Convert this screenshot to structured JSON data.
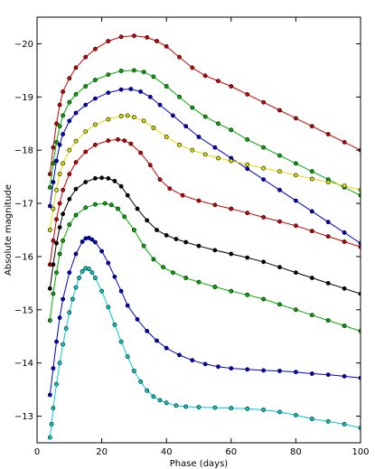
{
  "chart_data": {
    "type": "line",
    "xlabel": "Phase (days)",
    "ylabel": "Absolute magnitude",
    "xlim": [
      0,
      100
    ],
    "ylim": [
      -12.5,
      -20.5
    ],
    "y_inverted": true,
    "grid": false,
    "legend": "none",
    "x_ticks": [
      0,
      20,
      40,
      60,
      80,
      100
    ],
    "x_tick_labels": [
      "0",
      "20",
      "40",
      "60",
      "80",
      "100"
    ],
    "y_ticks": [
      -20,
      -19,
      -18,
      -17,
      -16,
      -15,
      -14,
      -13
    ],
    "y_tick_labels": [
      "−20",
      "−19",
      "−18",
      "−17",
      "−16",
      "−15",
      "−14",
      "−13"
    ],
    "marker_edge_color": "#000000",
    "series": [
      {
        "color": "#cc0000",
        "x": [
          4,
          5,
          6,
          7,
          8,
          10,
          12,
          15,
          18,
          22,
          26,
          30,
          34,
          37,
          40,
          44,
          48,
          52,
          56,
          60,
          65,
          70,
          75,
          80,
          85,
          90,
          95,
          100
        ],
        "y": [
          -17.55,
          -18.05,
          -18.5,
          -18.85,
          -19.1,
          -19.35,
          -19.55,
          -19.75,
          -19.9,
          -20.05,
          -20.13,
          -20.15,
          -20.12,
          -20.05,
          -19.95,
          -19.75,
          -19.55,
          -19.4,
          -19.3,
          -19.2,
          -19.05,
          -18.9,
          -18.75,
          -18.6,
          -18.45,
          -18.3,
          -18.15,
          -18.0
        ]
      },
      {
        "color": "#00aa00",
        "x": [
          4,
          5,
          6,
          7,
          8,
          10,
          12,
          15,
          18,
          22,
          26,
          30,
          33,
          36,
          40,
          44,
          48,
          52,
          56,
          60,
          65,
          70,
          75,
          80,
          85,
          90,
          95,
          100
        ],
        "y": [
          -17.3,
          -17.75,
          -18.15,
          -18.45,
          -18.65,
          -18.9,
          -19.05,
          -19.2,
          -19.32,
          -19.42,
          -19.49,
          -19.5,
          -19.47,
          -19.38,
          -19.2,
          -19.0,
          -18.8,
          -18.63,
          -18.5,
          -18.38,
          -18.2,
          -18.05,
          -17.9,
          -17.75,
          -17.6,
          -17.45,
          -17.3,
          -17.15
        ]
      },
      {
        "color": "#0000cc",
        "x": [
          4,
          5,
          6,
          7,
          8,
          10,
          12,
          15,
          18,
          22,
          26,
          29,
          32,
          35,
          38,
          42,
          46,
          50,
          55,
          60,
          65,
          70,
          75,
          80,
          85,
          90,
          95,
          100
        ],
        "y": [
          -16.95,
          -17.4,
          -17.8,
          -18.1,
          -18.3,
          -18.55,
          -18.7,
          -18.85,
          -18.97,
          -19.08,
          -19.14,
          -19.15,
          -19.1,
          -19.0,
          -18.85,
          -18.65,
          -18.45,
          -18.25,
          -18.05,
          -17.85,
          -17.65,
          -17.45,
          -17.25,
          -17.05,
          -16.85,
          -16.65,
          -16.45,
          -16.25
        ]
      },
      {
        "color": "#dddd00",
        "x": [
          4,
          5,
          6,
          7,
          8,
          10,
          12,
          15,
          18,
          22,
          26,
          28,
          30,
          33,
          36,
          40,
          44,
          48,
          52,
          56,
          60,
          65,
          70,
          75,
          80,
          85,
          90,
          95,
          100
        ],
        "y": [
          -16.5,
          -16.9,
          -17.25,
          -17.55,
          -17.75,
          -18.0,
          -18.17,
          -18.35,
          -18.48,
          -18.58,
          -18.64,
          -18.65,
          -18.62,
          -18.55,
          -18.42,
          -18.25,
          -18.1,
          -18.0,
          -17.92,
          -17.85,
          -17.8,
          -17.73,
          -17.66,
          -17.6,
          -17.53,
          -17.46,
          -17.4,
          -17.33,
          -17.25
        ]
      },
      {
        "color": "#cc0000",
        "x": [
          4,
          5,
          6,
          7,
          8,
          10,
          12,
          15,
          18,
          22,
          25,
          27,
          29,
          32,
          35,
          38,
          41,
          45,
          50,
          55,
          60,
          65,
          70,
          75,
          80,
          85,
          90,
          95,
          100
        ],
        "y": [
          -15.85,
          -16.3,
          -16.7,
          -17.0,
          -17.25,
          -17.55,
          -17.77,
          -17.97,
          -18.1,
          -18.18,
          -18.2,
          -18.18,
          -18.12,
          -17.95,
          -17.72,
          -17.45,
          -17.28,
          -17.15,
          -17.05,
          -16.97,
          -16.9,
          -16.82,
          -16.74,
          -16.66,
          -16.58,
          -16.48,
          -16.38,
          -16.28,
          -16.18
        ]
      },
      {
        "color": "#000000",
        "x": [
          4,
          5,
          6,
          7,
          8,
          10,
          12,
          15,
          18,
          20,
          22,
          24,
          26,
          28,
          31,
          34,
          37,
          40,
          43,
          46,
          50,
          55,
          60,
          65,
          70,
          75,
          80,
          85,
          90,
          95,
          100
        ],
        "y": [
          -15.4,
          -15.85,
          -16.25,
          -16.55,
          -16.8,
          -17.08,
          -17.27,
          -17.4,
          -17.47,
          -17.48,
          -17.47,
          -17.42,
          -17.32,
          -17.15,
          -16.9,
          -16.68,
          -16.5,
          -16.4,
          -16.33,
          -16.27,
          -16.2,
          -16.12,
          -16.05,
          -15.98,
          -15.9,
          -15.8,
          -15.7,
          -15.6,
          -15.5,
          -15.4,
          -15.3
        ]
      },
      {
        "color": "#00aa00",
        "x": [
          4,
          5,
          6,
          7,
          8,
          10,
          12,
          15,
          18,
          21,
          23,
          25,
          27,
          30,
          33,
          36,
          39,
          42,
          46,
          50,
          55,
          60,
          65,
          70,
          75,
          80,
          85,
          90,
          95,
          100
        ],
        "y": [
          -14.8,
          -15.3,
          -15.7,
          -16.05,
          -16.3,
          -16.6,
          -16.78,
          -16.92,
          -16.98,
          -17.0,
          -16.97,
          -16.9,
          -16.75,
          -16.5,
          -16.2,
          -15.95,
          -15.8,
          -15.7,
          -15.6,
          -15.52,
          -15.43,
          -15.35,
          -15.28,
          -15.2,
          -15.1,
          -15.0,
          -14.9,
          -14.8,
          -14.7,
          -14.6
        ]
      },
      {
        "color": "#0000cc",
        "x": [
          4,
          5,
          6,
          7,
          8,
          10,
          12,
          14,
          15,
          16,
          17,
          18,
          20,
          22,
          24,
          26,
          28,
          31,
          34,
          37,
          40,
          44,
          48,
          52,
          56,
          60,
          65,
          70,
          75,
          80,
          85,
          90,
          95,
          100
        ],
        "y": [
          -13.4,
          -13.9,
          -14.4,
          -14.85,
          -15.2,
          -15.7,
          -16.05,
          -16.28,
          -16.34,
          -16.35,
          -16.32,
          -16.27,
          -16.1,
          -15.88,
          -15.62,
          -15.35,
          -15.08,
          -14.82,
          -14.6,
          -14.42,
          -14.28,
          -14.15,
          -14.05,
          -13.98,
          -13.93,
          -13.9,
          -13.88,
          -13.86,
          -13.85,
          -13.83,
          -13.8,
          -13.78,
          -13.75,
          -13.72
        ]
      },
      {
        "color": "#00cccc",
        "x": [
          4,
          4.5,
          5,
          6,
          7,
          8,
          9,
          10,
          11,
          12,
          13,
          14,
          15,
          16,
          17,
          18,
          20,
          22,
          24,
          26,
          28,
          30,
          32,
          34,
          36,
          38,
          40,
          43,
          46,
          50,
          55,
          60,
          65,
          70,
          75,
          80,
          85,
          90,
          95,
          100
        ],
        "y": [
          -12.6,
          -12.85,
          -13.15,
          -13.6,
          -14.0,
          -14.35,
          -14.65,
          -14.95,
          -15.2,
          -15.42,
          -15.6,
          -15.72,
          -15.78,
          -15.77,
          -15.7,
          -15.6,
          -15.35,
          -15.05,
          -14.72,
          -14.4,
          -14.12,
          -13.85,
          -13.65,
          -13.48,
          -13.37,
          -13.3,
          -13.25,
          -13.2,
          -13.18,
          -13.17,
          -13.16,
          -13.15,
          -13.14,
          -13.12,
          -13.08,
          -13.02,
          -12.95,
          -12.9,
          -12.85,
          -12.78
        ]
      }
    ]
  }
}
